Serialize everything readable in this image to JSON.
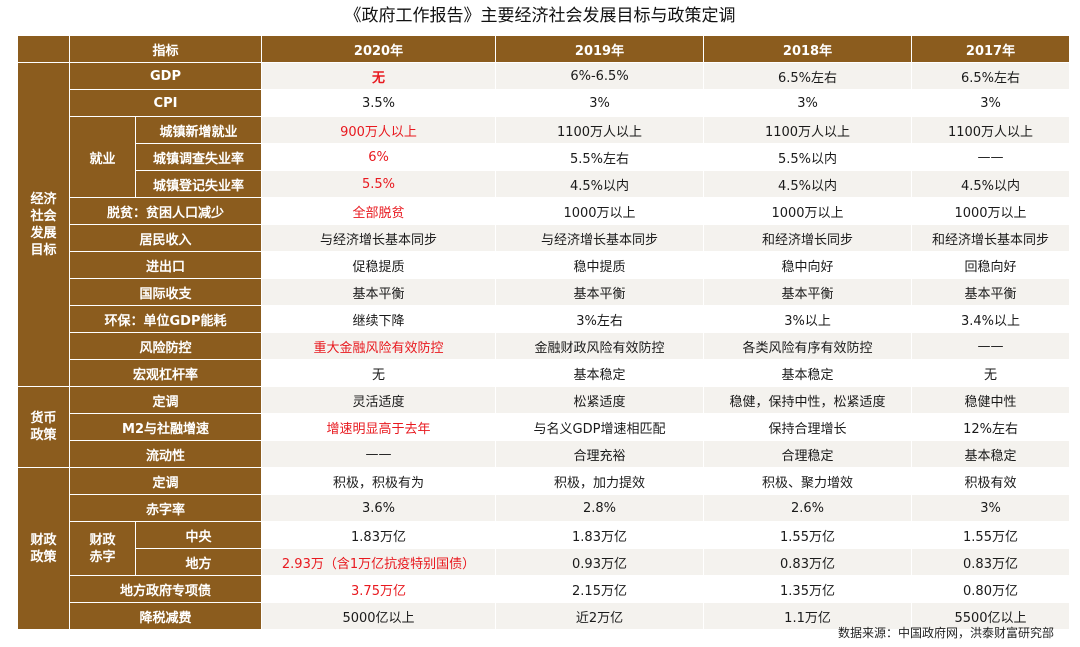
{
  "title": "《政府工作报告》主要经济社会发展目标与政策定调",
  "header": {
    "indicator": "指标",
    "years": [
      "2020年",
      "2019年",
      "2018年",
      "2017年"
    ]
  },
  "categories": {
    "economy": [
      "经济",
      "社会",
      "发展",
      "目标"
    ],
    "monetary": [
      "货币",
      "政策"
    ],
    "fiscal": [
      "财政",
      "政策"
    ]
  },
  "subgroups": {
    "employment": "就业",
    "deficit": [
      "财政",
      "赤字"
    ]
  },
  "rows": [
    {
      "label": "GDP",
      "values": [
        "无",
        "6%-6.5%",
        "6.5%左右",
        "6.5%左右"
      ],
      "highlight": true
    },
    {
      "label": "CPI",
      "values": [
        "3.5%",
        "3%",
        "3%",
        "3%"
      ],
      "highlight": false
    },
    {
      "label": "城镇新增就业",
      "values": [
        "900万人以上",
        "1100万人以上",
        "1100万人以上",
        "1100万人以上"
      ],
      "highlight": true
    },
    {
      "label": "城镇调查失业率",
      "values": [
        "6%",
        "5.5%左右",
        "5.5%以内",
        "——"
      ],
      "highlight": true
    },
    {
      "label": "城镇登记失业率",
      "values": [
        "5.5%",
        "4.5%以内",
        "4.5%以内",
        "4.5%以内"
      ],
      "highlight": true
    },
    {
      "label": "脱贫：贫困人口减少",
      "values": [
        "全部脱贫",
        "1000万以上",
        "1000万以上",
        "1000万以上"
      ],
      "highlight": true
    },
    {
      "label": "居民收入",
      "values": [
        "与经济增长基本同步",
        "与经济增长基本同步",
        "和经济增长同步",
        "和经济增长基本同步"
      ],
      "highlight": false
    },
    {
      "label": "进出口",
      "values": [
        "促稳提质",
        "稳中提质",
        "稳中向好",
        "回稳向好"
      ],
      "highlight": false
    },
    {
      "label": "国际收支",
      "values": [
        "基本平衡",
        "基本平衡",
        "基本平衡",
        "基本平衡"
      ],
      "highlight": false
    },
    {
      "label": "环保：单位GDP能耗",
      "values": [
        "继续下降",
        "3%左右",
        "3%以上",
        "3.4%以上"
      ],
      "highlight": false
    },
    {
      "label": "风险防控",
      "values": [
        "重大金融风险有效防控",
        "金融财政风险有效防控",
        "各类风险有序有效防控",
        "——"
      ],
      "highlight": true
    },
    {
      "label": "宏观杠杆率",
      "values": [
        "无",
        "基本稳定",
        "基本稳定",
        "无"
      ],
      "highlight": false
    },
    {
      "label": "定调",
      "values": [
        "灵活适度",
        "松紧适度",
        "稳健，保持中性，松紧适度",
        "稳健中性"
      ],
      "highlight": false
    },
    {
      "label": "M2与社融增速",
      "values": [
        "增速明显高于去年",
        "与名义GDP增速相匹配",
        "保持合理增长",
        "12%左右"
      ],
      "highlight": true
    },
    {
      "label": "流动性",
      "values": [
        "——",
        "合理充裕",
        "合理稳定",
        "基本稳定"
      ],
      "highlight": false
    },
    {
      "label": "定调",
      "values": [
        "积极，积极有为",
        "积极，加力提效",
        "积极、聚力增效",
        "积极有效"
      ],
      "highlight": false
    },
    {
      "label": "赤字率",
      "values": [
        "3.6%",
        "2.8%",
        "2.6%",
        "3%"
      ],
      "highlight": false
    },
    {
      "label": "中央",
      "values": [
        "1.83万亿",
        "1.83万亿",
        "1.55万亿",
        "1.55万亿"
      ],
      "highlight": false
    },
    {
      "label": "地方",
      "values": [
        "2.93万（含1万亿抗疫特别国债）",
        "0.93万亿",
        "0.83万亿",
        "0.83万亿"
      ],
      "highlight": true
    },
    {
      "label": "地方政府专项债",
      "values": [
        "3.75万亿",
        "2.15万亿",
        "1.35万亿",
        "0.80万亿"
      ],
      "highlight": true
    },
    {
      "label": "降税减费",
      "values": [
        "5000亿以上",
        "近2万亿",
        "1.1万亿",
        "5500亿以上"
      ],
      "highlight": false
    }
  ],
  "source": "数据来源：中国政府网，洪泰财富研究部",
  "colors": {
    "header_bg": "#8b5c1e",
    "highlight_text": "#e8191f",
    "row_alt": "#f4f2ee"
  }
}
